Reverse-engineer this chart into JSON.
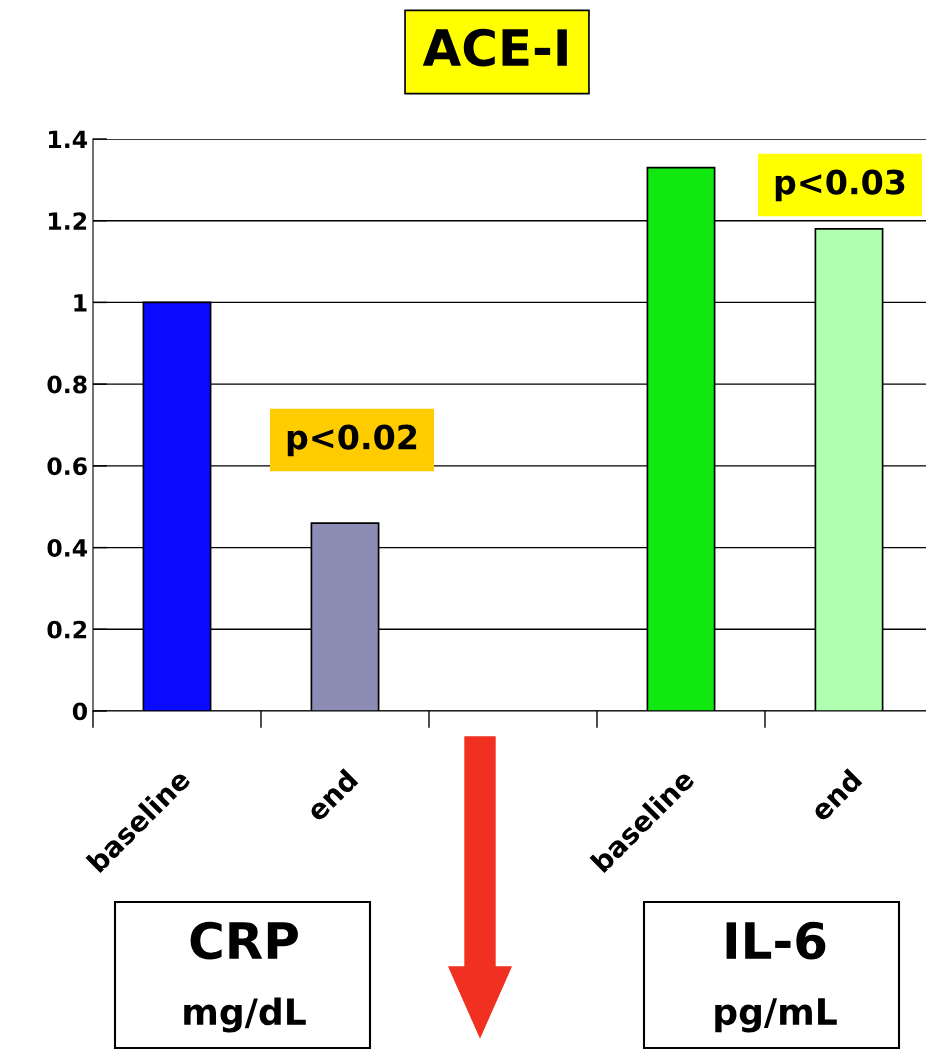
{
  "chart_data": {
    "type": "bar",
    "title": "ACE-I",
    "categories": [
      "baseline",
      "end",
      null,
      "baseline",
      "end"
    ],
    "values": [
      1.0,
      0.46,
      null,
      1.33,
      1.18
    ],
    "colors": [
      "#0a0aff",
      "#8c8cb4",
      null,
      "#10e810",
      "#b0ffb0"
    ],
    "ylim": [
      0,
      1.4
    ],
    "yticks": [
      0,
      0.2,
      0.4,
      0.6,
      0.8,
      1,
      1.2,
      1.4
    ],
    "grid": "y",
    "legend": false,
    "annotations": [
      "p<0.02",
      "p<0.03",
      "CRP",
      "mg/dL",
      "IL-6",
      "pg/mL"
    ]
  }
}
